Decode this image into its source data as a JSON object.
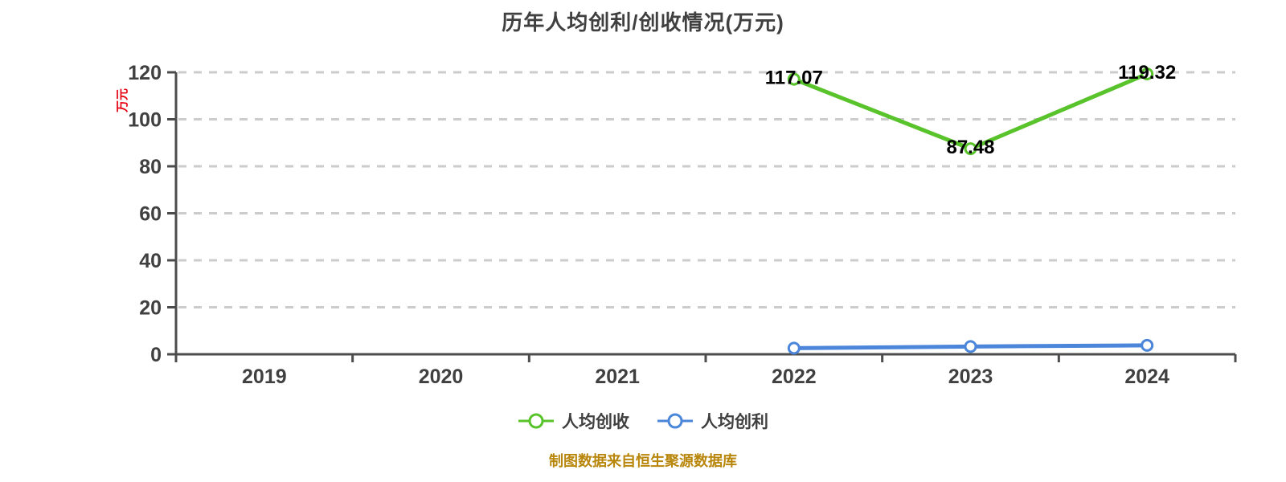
{
  "title": "历年人均创利/创收情况(万元)",
  "y_axis": {
    "name": "万元",
    "name_color": "#e60012"
  },
  "footer": {
    "text": "制图数据来自恒生聚源数据库",
    "color": "#b8860b"
  },
  "colors": {
    "grid": "#cccccc",
    "axis": "#4c4c4c",
    "tick_text": "#404040",
    "value_label": "#000000"
  },
  "chart_data": {
    "type": "line",
    "title": "历年人均创利/创收情况(万元)",
    "categories": [
      "2019",
      "2020",
      "2021",
      "2022",
      "2023",
      "2024"
    ],
    "series": [
      {
        "name": "人均创收",
        "color": "#58c32b",
        "values": [
          null,
          null,
          null,
          117.07,
          87.48,
          119.32
        ],
        "show_labels": true,
        "marker": "circle-white-fill"
      },
      {
        "name": "人均创利",
        "color": "#4b86db",
        "values": [
          null,
          null,
          null,
          2.6,
          3.3,
          3.8
        ],
        "values_estimated": true,
        "show_labels": false,
        "marker": "circle-white-fill"
      }
    ],
    "ylim": [
      0,
      120
    ],
    "y_ticks": [
      0,
      20,
      40,
      60,
      80,
      100,
      120
    ],
    "y_tick_step": 20,
    "ylabel": "万元",
    "xlabel": "",
    "grid": "dashed-horizontal",
    "legend_position": "bottom"
  }
}
